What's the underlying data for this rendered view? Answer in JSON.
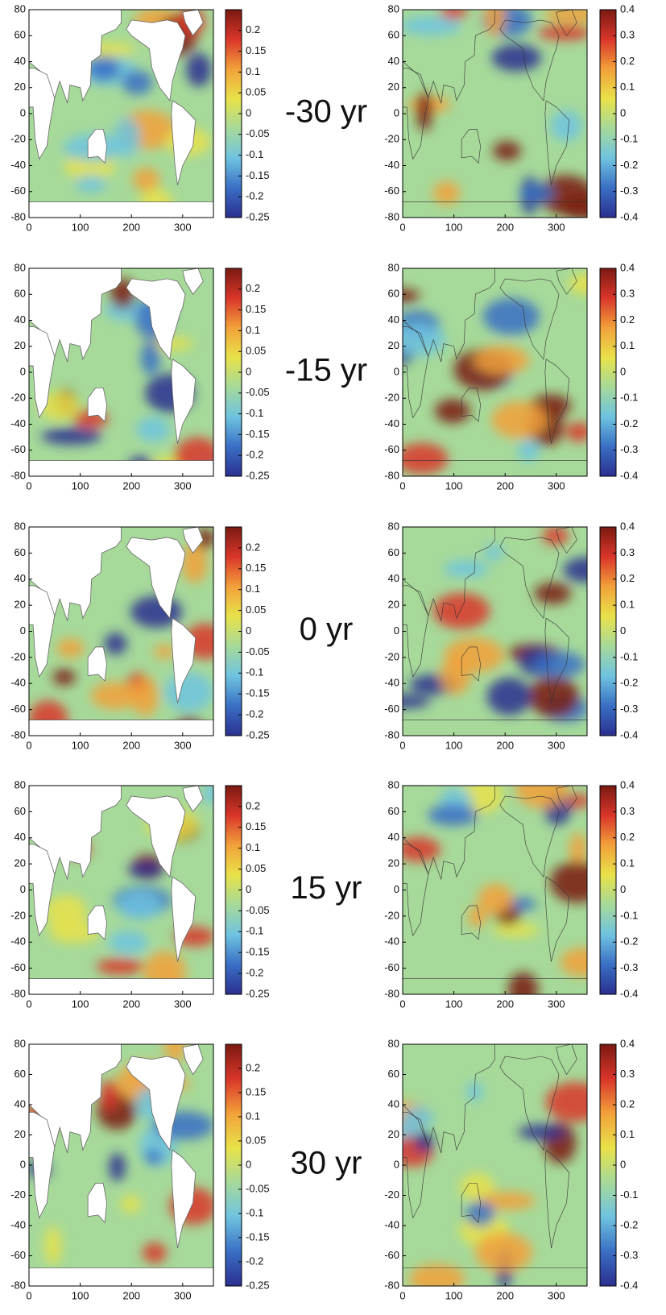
{
  "chart_data": [
    {
      "type": "heatmap",
      "annotation": "-30 yr",
      "xlim": [
        0,
        360
      ],
      "xticks": [
        0,
        100,
        200,
        300
      ],
      "ylim": [
        -80,
        80
      ],
      "yticks": [
        -80,
        -60,
        -40,
        -20,
        0,
        20,
        40,
        60,
        80
      ],
      "clim": [
        -0.25,
        0.25
      ],
      "cticks": [
        -0.25,
        -0.2,
        -0.15,
        -0.1,
        -0.05,
        0,
        0.05,
        0.1,
        0.15,
        0.2
      ],
      "colormap": [
        "#2b2f8f",
        "#3a6fc4",
        "#6fc3e0",
        "#a6d99a",
        "#e8e24a",
        "#f2a13a",
        "#d9352a",
        "#7a1a12"
      ]
    },
    {
      "type": "heatmap",
      "xlim": [
        0,
        360
      ],
      "xticks": [
        0,
        100,
        200,
        300
      ],
      "ylim": [
        -80,
        80
      ],
      "yticks": [
        -80,
        -60,
        -40,
        -20,
        0,
        20,
        40,
        60,
        80
      ],
      "clim": [
        -0.4,
        0.4
      ],
      "cticks": [
        -0.4,
        -0.3,
        -0.2,
        -0.1,
        0,
        0.1,
        0.2,
        0.3,
        0.4
      ],
      "colormap": [
        "#2b2f8f",
        "#3a6fc4",
        "#6fc3e0",
        "#a6d99a",
        "#e8e24a",
        "#f2a13a",
        "#d9352a",
        "#7a1a12"
      ]
    },
    {
      "type": "heatmap",
      "annotation": "-15 yr",
      "xlim": [
        0,
        360
      ],
      "xticks": [
        0,
        100,
        200,
        300
      ],
      "ylim": [
        -80,
        80
      ],
      "yticks": [
        -80,
        -60,
        -40,
        -20,
        0,
        20,
        40,
        60,
        80
      ],
      "clim": [
        -0.25,
        0.25
      ],
      "cticks": [
        -0.25,
        -0.2,
        -0.15,
        -0.1,
        -0.05,
        0,
        0.05,
        0.1,
        0.15,
        0.2
      ],
      "colormap": [
        "#2b2f8f",
        "#3a6fc4",
        "#6fc3e0",
        "#a6d99a",
        "#e8e24a",
        "#f2a13a",
        "#d9352a",
        "#7a1a12"
      ]
    },
    {
      "type": "heatmap",
      "xlim": [
        0,
        360
      ],
      "xticks": [
        0,
        100,
        200,
        300
      ],
      "ylim": [
        -80,
        80
      ],
      "yticks": [
        -80,
        -60,
        -40,
        -20,
        0,
        20,
        40,
        60,
        80
      ],
      "clim": [
        -0.4,
        0.4
      ],
      "cticks": [
        -0.4,
        -0.3,
        -0.2,
        -0.1,
        0,
        0.1,
        0.2,
        0.3,
        0.4
      ],
      "colormap": [
        "#2b2f8f",
        "#3a6fc4",
        "#6fc3e0",
        "#a6d99a",
        "#e8e24a",
        "#f2a13a",
        "#d9352a",
        "#7a1a12"
      ]
    },
    {
      "type": "heatmap",
      "annotation": "0 yr",
      "xlim": [
        0,
        360
      ],
      "xticks": [
        0,
        100,
        200,
        300
      ],
      "ylim": [
        -80,
        80
      ],
      "yticks": [
        -80,
        -60,
        -40,
        -20,
        0,
        20,
        40,
        60,
        80
      ],
      "clim": [
        -0.25,
        0.25
      ],
      "cticks": [
        -0.25,
        -0.2,
        -0.15,
        -0.1,
        -0.05,
        0,
        0.05,
        0.1,
        0.15,
        0.2
      ],
      "colormap": [
        "#2b2f8f",
        "#3a6fc4",
        "#6fc3e0",
        "#a6d99a",
        "#e8e24a",
        "#f2a13a",
        "#d9352a",
        "#7a1a12"
      ]
    },
    {
      "type": "heatmap",
      "xlim": [
        0,
        360
      ],
      "xticks": [
        0,
        100,
        200,
        300
      ],
      "ylim": [
        -80,
        80
      ],
      "yticks": [
        -80,
        -60,
        -40,
        -20,
        0,
        20,
        40,
        60,
        80
      ],
      "clim": [
        -0.4,
        0.4
      ],
      "cticks": [
        -0.4,
        -0.3,
        -0.2,
        -0.1,
        0,
        0.1,
        0.2,
        0.3,
        0.4
      ],
      "colormap": [
        "#2b2f8f",
        "#3a6fc4",
        "#6fc3e0",
        "#a6d99a",
        "#e8e24a",
        "#f2a13a",
        "#d9352a",
        "#7a1a12"
      ]
    },
    {
      "type": "heatmap",
      "annotation": "15 yr",
      "xlim": [
        0,
        360
      ],
      "xticks": [
        0,
        100,
        200,
        300
      ],
      "ylim": [
        -80,
        80
      ],
      "yticks": [
        -80,
        -60,
        -40,
        -20,
        0,
        20,
        40,
        60,
        80
      ],
      "clim": [
        -0.25,
        0.25
      ],
      "cticks": [
        -0.25,
        -0.2,
        -0.15,
        -0.1,
        -0.05,
        0,
        0.05,
        0.1,
        0.15,
        0.2
      ],
      "colormap": [
        "#2b2f8f",
        "#3a6fc4",
        "#6fc3e0",
        "#a6d99a",
        "#e8e24a",
        "#f2a13a",
        "#d9352a",
        "#7a1a12"
      ]
    },
    {
      "type": "heatmap",
      "xlim": [
        0,
        360
      ],
      "xticks": [
        0,
        100,
        200,
        300
      ],
      "ylim": [
        -80,
        80
      ],
      "yticks": [
        -80,
        -60,
        -40,
        -20,
        0,
        20,
        40,
        60,
        80
      ],
      "clim": [
        -0.4,
        0.4
      ],
      "cticks": [
        -0.4,
        -0.3,
        -0.2,
        -0.1,
        0,
        0.1,
        0.2,
        0.3,
        0.4
      ],
      "colormap": [
        "#2b2f8f",
        "#3a6fc4",
        "#6fc3e0",
        "#a6d99a",
        "#e8e24a",
        "#f2a13a",
        "#d9352a",
        "#7a1a12"
      ]
    },
    {
      "type": "heatmap",
      "annotation": "30 yr",
      "xlim": [
        0,
        360
      ],
      "xticks": [
        0,
        100,
        200,
        300
      ],
      "ylim": [
        -80,
        80
      ],
      "yticks": [
        -80,
        -60,
        -40,
        -20,
        0,
        20,
        40,
        60,
        80
      ],
      "clim": [
        -0.25,
        0.25
      ],
      "cticks": [
        -0.25,
        -0.2,
        -0.15,
        -0.1,
        -0.05,
        0,
        0.05,
        0.1,
        0.15,
        0.2
      ],
      "colormap": [
        "#2b2f8f",
        "#3a6fc4",
        "#6fc3e0",
        "#a6d99a",
        "#e8e24a",
        "#f2a13a",
        "#d9352a",
        "#7a1a12"
      ]
    },
    {
      "type": "heatmap",
      "xlim": [
        0,
        360
      ],
      "xticks": [
        0,
        100,
        200,
        300
      ],
      "ylim": [
        -80,
        80
      ],
      "yticks": [
        -80,
        -60,
        -40,
        -20,
        0,
        20,
        40,
        60,
        80
      ],
      "clim": [
        -0.4,
        0.4
      ],
      "cticks": [
        -0.4,
        -0.3,
        -0.2,
        -0.1,
        0,
        0.1,
        0.2,
        0.3,
        0.4
      ],
      "colormap": [
        "#2b2f8f",
        "#3a6fc4",
        "#6fc3e0",
        "#a6d99a",
        "#e8e24a",
        "#f2a13a",
        "#d9352a",
        "#7a1a12"
      ]
    }
  ]
}
